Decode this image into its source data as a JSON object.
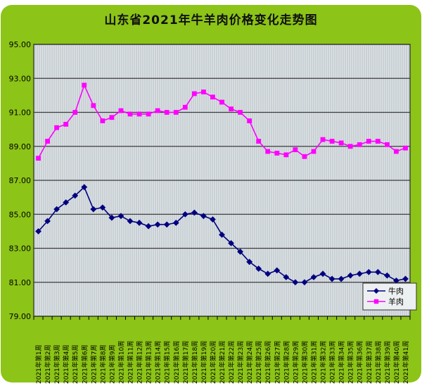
{
  "panel": {
    "background_color": "#8cc417",
    "page_color": "#ffffff"
  },
  "chart_data": {
    "type": "line",
    "title": "山东省2021年牛羊肉价格变化走势图",
    "xlabel": "",
    "ylabel": "",
    "ylim": [
      79,
      95
    ],
    "ytick_step": 2,
    "ytick_labels": [
      "79.00",
      "81.00",
      "83.00",
      "85.00",
      "87.00",
      "89.00",
      "91.00",
      "93.00",
      "95.00"
    ],
    "grid": "horizontal",
    "legend_position": "bottom-right",
    "plot_background": "#c9d1d5",
    "gridline_color": "#3c3c3c",
    "categories": [
      "2021年第1周",
      "2021年第2周",
      "2021年第3周",
      "2021年第4周",
      "2021年第5周",
      "2021年第6周",
      "2021年第7周",
      "2021年第8周",
      "2021年第9周",
      "2021年第10周",
      "2021年第11周",
      "2021年第12周",
      "2021年第13周",
      "2021年第14周",
      "2021年第15周",
      "2021年第16周",
      "2021年第17周",
      "2021年第18周",
      "2021年第19周",
      "2021年第20周",
      "2021年第21周",
      "2021年第22周",
      "2021年第23周",
      "2021年第24周",
      "2021年第25周",
      "2021年第26周",
      "2021年第27周",
      "2021年第28周",
      "2021年第29周",
      "2021年第30周",
      "2021年第31周",
      "2021年第32周",
      "2021年第33周",
      "2021年第34周",
      "2021年第35周",
      "2021年第36周",
      "2021年第37周",
      "2021年第38周",
      "2021年第39周",
      "2021年第40周",
      "2021年第41周"
    ],
    "series": [
      {
        "id": "beef",
        "name": "牛肉",
        "color": "#000080",
        "marker": "diamond",
        "values": [
          84.0,
          84.6,
          85.3,
          85.7,
          86.1,
          86.6,
          85.3,
          85.4,
          84.8,
          84.9,
          84.6,
          84.5,
          84.3,
          84.4,
          84.4,
          84.5,
          85.0,
          85.1,
          84.9,
          84.7,
          83.8,
          83.3,
          82.8,
          82.2,
          81.8,
          81.5,
          81.7,
          81.3,
          81.0,
          81.0,
          81.3,
          81.5,
          81.2,
          81.2,
          81.4,
          81.5,
          81.6,
          81.6,
          81.4,
          81.1,
          81.2
        ]
      },
      {
        "id": "mutton",
        "name": "羊肉",
        "color": "#ff00ff",
        "marker": "square",
        "values": [
          88.3,
          89.3,
          90.1,
          90.3,
          91.0,
          92.6,
          91.4,
          90.5,
          90.7,
          91.1,
          90.9,
          90.9,
          90.9,
          91.1,
          91.0,
          91.0,
          91.3,
          92.1,
          92.2,
          91.9,
          91.6,
          91.2,
          91.0,
          90.5,
          89.3,
          88.7,
          88.6,
          88.5,
          88.8,
          88.4,
          88.7,
          89.4,
          89.3,
          89.2,
          89.0,
          89.1,
          89.3,
          89.3,
          89.1,
          88.7,
          88.9
        ]
      }
    ]
  }
}
